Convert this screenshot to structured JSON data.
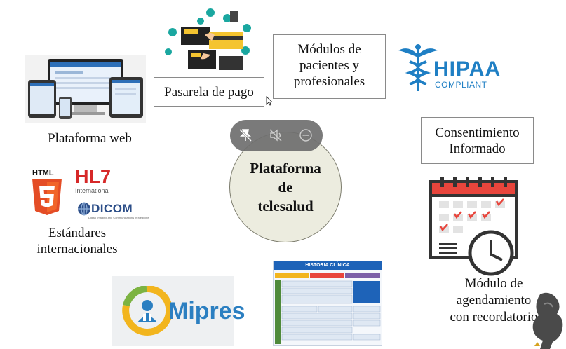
{
  "nodes": {
    "web": {
      "label": "Plataforma web"
    },
    "payment": {
      "label": "Pasarela de pago"
    },
    "modules": {
      "line1": "Módulos de",
      "line2": "pacientes y",
      "line3": "profesionales"
    },
    "hipaa": {
      "title": "HIPAA",
      "subtitle": "COMPLIANT"
    },
    "consent": {
      "line1": "Consentimiento",
      "line2": "Informado"
    },
    "standards": {
      "line1": "Estándares",
      "line2": "internacionales",
      "html5": "HTML",
      "hl7": "HL7",
      "hl7_sub": "International",
      "dicom": "DICOM",
      "dicom_sub": "Digital Imaging and Communications in Medicine"
    },
    "center": {
      "line1": "Plataforma",
      "line2": "de",
      "line3": "telesalud"
    },
    "mipres": {
      "label": "Mipres"
    },
    "history": {
      "title": "HISTORIA CLÍNICA"
    },
    "schedule": {
      "line1": "Módulo de",
      "line2": "agendamiento",
      "line3": "con recordatorio"
    }
  },
  "colors": {
    "html5": "#e44d26",
    "hl7": "#d62828",
    "hipaa": "#1f7fc4",
    "mipres_blue": "#2b7fc1",
    "mipres_ring": "#f2b51e",
    "calendar_red": "#e8453c",
    "payment_teal": "#1aa7a0",
    "payment_yellow": "#f4c430"
  },
  "icons": [
    "web-devices-icon",
    "payment-icon",
    "hipaa-caduceus-icon",
    "calendar-clock-icon",
    "html5-icon",
    "dicom-globe-icon",
    "mipres-logo-icon",
    "clinical-history-form-icon",
    "pin-icon",
    "mute-icon",
    "minus-circle-icon",
    "cursor-icon"
  ]
}
